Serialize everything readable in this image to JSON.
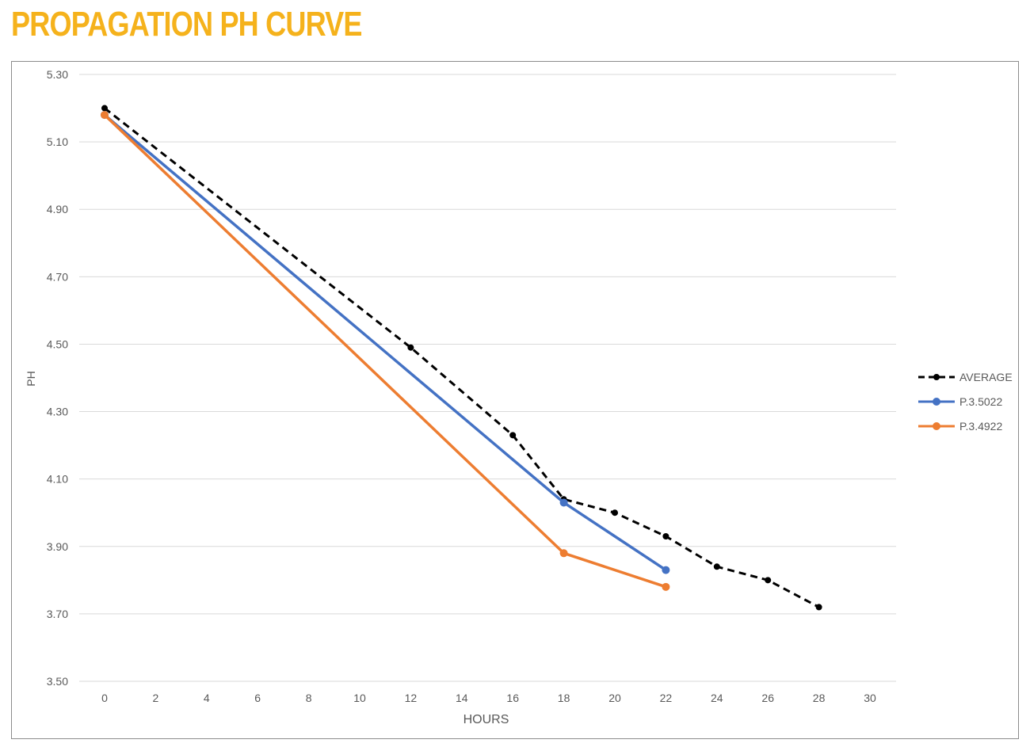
{
  "title": "PROPAGATION PH CURVE",
  "colors": {
    "title": "#F5B21C",
    "grid": "#d9d9d9",
    "text": "#595959"
  },
  "chart_data": {
    "type": "line",
    "xlabel": "HOURS",
    "ylabel": "PH",
    "xlim": [
      0,
      30
    ],
    "ylim": [
      3.5,
      5.3
    ],
    "xticks": [
      0,
      2,
      4,
      6,
      8,
      10,
      12,
      14,
      16,
      18,
      20,
      22,
      24,
      26,
      28,
      30
    ],
    "yticks": [
      "3.50",
      "3.70",
      "3.90",
      "4.10",
      "4.30",
      "4.50",
      "4.70",
      "4.90",
      "5.10",
      "5.30"
    ],
    "grid": "horizontal",
    "legend": "right",
    "series": [
      {
        "name": "AVERAGE",
        "color": "#000000",
        "style": "dashed",
        "x": [
          0,
          12,
          16,
          18,
          20,
          22,
          24,
          26,
          28
        ],
        "y": [
          5.2,
          4.49,
          4.23,
          4.04,
          4.0,
          3.93,
          3.84,
          3.8,
          3.72
        ]
      },
      {
        "name": "P.3.5022",
        "color": "#4472C4",
        "style": "solid",
        "x": [
          0,
          18,
          22
        ],
        "y": [
          5.18,
          4.03,
          3.83
        ]
      },
      {
        "name": "P.3.4922",
        "color": "#ED7D31",
        "style": "solid",
        "x": [
          0,
          18,
          22
        ],
        "y": [
          5.18,
          3.88,
          3.78
        ]
      }
    ]
  }
}
